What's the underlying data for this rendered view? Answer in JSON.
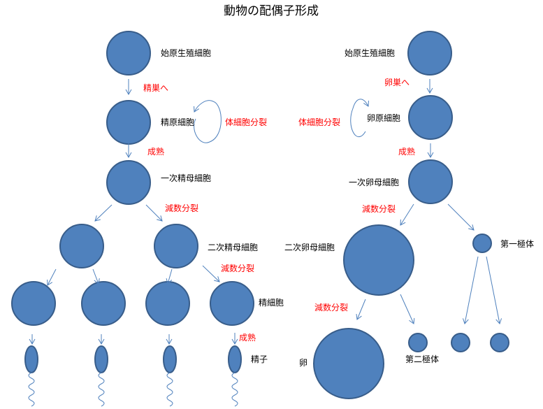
{
  "title": "動物の配偶子形成",
  "colors": {
    "cell_fill": "#4f81bd",
    "cell_stroke": "#385d8a",
    "arrow": "#4f81bd",
    "process_label": "#ff0000"
  },
  "male": {
    "primordial": "始原生殖細胞",
    "to_testis": "精巣へ",
    "spermatogonium": "精原細胞",
    "mitosis": "体細胞分裂",
    "maturation1": "成熟",
    "primary_spermatocyte": "一次精母細胞",
    "meiosis1": "減数分裂",
    "secondary_spermatocyte": "二次精母細胞",
    "meiosis2": "減数分裂",
    "spermatid": "精細胞",
    "maturation2": "成熟",
    "sperm": "精子"
  },
  "female": {
    "primordial": "始原生殖細胞",
    "to_ovary": "卵巣へ",
    "oogonium": "卵原細胞",
    "mitosis": "体細胞分裂",
    "maturation": "成熟",
    "primary_oocyte": "一次卵母細胞",
    "meiosis1": "減数分裂",
    "secondary_oocyte": "二次卵母細胞",
    "first_polar_body": "第一極体",
    "meiosis2": "減数分裂",
    "egg": "卵",
    "second_polar_body": "第二極体"
  }
}
